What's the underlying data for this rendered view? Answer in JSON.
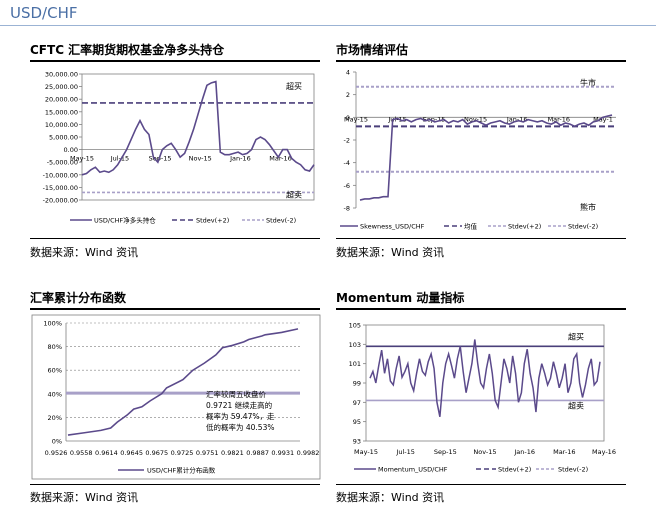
{
  "page": {
    "title": "USD/CHF"
  },
  "sections": {
    "s1": {
      "title": "CFTC 汇率期货期权基金净多头持仓",
      "source": "数据来源：Wind 资讯"
    },
    "s2": {
      "title": "市场情绪评估",
      "source": "数据来源：Wind 资讯"
    },
    "s3": {
      "title": "汇率累计分布函数",
      "source": "数据来源：Wind 资讯"
    },
    "s4": {
      "title": "Momentum 动量指标",
      "source": "数据来源：Wind 资讯"
    }
  },
  "colors": {
    "series": "#5b4a8b",
    "band_upper": "#4a3f7a",
    "band_lower": "#a8a0c8",
    "grid": "#c0c0c0",
    "title": "#4a6fa5"
  },
  "chart_data": [
    {
      "id": "cftc",
      "type": "line",
      "ylim": [
        -20000,
        30000
      ],
      "yticks": [
        -20000,
        -15000,
        -10000,
        -5000,
        0,
        5000,
        10000,
        15000,
        20000,
        25000,
        30000
      ],
      "ytick_labels": [
        "-20,000.00",
        "-15,000.00",
        "-10,000.00",
        "-5,000.00",
        "0.00",
        "5,000.00",
        "10,000.00",
        "15,000.00",
        "20,000.00",
        "25,000.00",
        "30,000.00"
      ],
      "xtick_labels": [
        "May-15",
        "Jul-15",
        "Sep-15",
        "Nov-15",
        "Jan-16",
        "Mar-16"
      ],
      "xtick_pos": [
        0,
        8.5,
        17.5,
        26.5,
        35.5,
        44.5
      ],
      "x_count": 53,
      "series": [
        {
          "name": "USD/CHF净多头持仓",
          "values": [
            -10000,
            -9500,
            -8000,
            -7000,
            -9000,
            -8500,
            -9000,
            -8000,
            -6000,
            -3000,
            0,
            4000,
            8000,
            11500,
            8000,
            6000,
            -3000,
            -5000,
            0,
            1500,
            2500,
            0,
            -3000,
            -1500,
            3000,
            8000,
            14000,
            20000,
            25500,
            26500,
            27000,
            -1000,
            -2000,
            -2000,
            -1500,
            -1000,
            -2000,
            -1500,
            0,
            4000,
            5000,
            4000,
            2000,
            -500,
            -3000,
            0,
            0,
            -3500,
            -5000,
            -6000,
            -8000,
            -8500,
            -6000
          ]
        },
        {
          "name": "Stdev(+2)",
          "constant": 18500
        },
        {
          "name": "Stdev(-2)",
          "constant": -17000
        }
      ],
      "annotations": [
        {
          "text": "超买"
        },
        {
          "text": "超卖"
        }
      ],
      "legend": [
        "USD/CHF净多头持仓",
        "Stdev(+2)",
        "Stdev(-2)"
      ]
    },
    {
      "id": "sentiment",
      "type": "line",
      "ylim": [
        -8,
        4
      ],
      "yticks": [
        -8,
        -6,
        -4,
        -2,
        0,
        2,
        4
      ],
      "ytick_labels": [
        "-8",
        "-6",
        "-4",
        "-2",
        "0",
        "2",
        "4"
      ],
      "xtick_labels": [
        "May-15",
        "Jul-15",
        "Sep-15",
        "Nov-15",
        "Jan-16",
        "Mar-16",
        "May-1"
      ],
      "x_count": 55,
      "series": [
        {
          "name": "Skewness_USD/CHF",
          "values": [
            -7.3,
            -7.2,
            -7.2,
            -7.1,
            -7.1,
            -7.0,
            -7.0,
            -0.2,
            -0.1,
            -0.3,
            -0.2,
            -0.4,
            -0.2,
            -0.1,
            -0.3,
            -0.2,
            -0.4,
            -0.3,
            -0.2,
            -0.5,
            -0.3,
            -0.4,
            -0.2,
            -0.6,
            -0.4,
            -0.3,
            -0.5,
            -0.7,
            -0.5,
            -0.4,
            -0.3,
            -0.5,
            -0.6,
            -0.4,
            -0.3,
            -0.4,
            -0.2,
            -0.3,
            -0.4,
            -0.3,
            -0.5,
            -0.6,
            -0.4,
            -0.7,
            -0.5,
            -0.6,
            -0.8,
            -0.6,
            -0.5,
            -0.7,
            -0.4,
            -0.3,
            0.0,
            0.1,
            0.2
          ]
        },
        {
          "name": "均值",
          "constant": -0.8
        },
        {
          "name": "Stdev(+2)",
          "constant": 2.7
        },
        {
          "name": "Stdev(-2)",
          "constant": -4.8
        }
      ],
      "annotations": [
        {
          "text": "牛市"
        },
        {
          "text": "熊市"
        }
      ],
      "legend": [
        "Skewness_USD/CHF",
        "均值",
        "Stdev(+2)",
        "Stdev(-2)"
      ]
    },
    {
      "id": "cdf",
      "type": "line",
      "ylim": [
        0,
        100
      ],
      "yticks": [
        0,
        20,
        40,
        60,
        80,
        100
      ],
      "ytick_labels": [
        "0%",
        "20%",
        "40%",
        "60%",
        "80%",
        "100%"
      ],
      "x": [
        0.9526,
        0.9558,
        0.959,
        0.961,
        0.9625,
        0.9645,
        0.966,
        0.9675,
        0.97,
        0.9721,
        0.973,
        0.9751,
        0.977,
        0.979,
        0.981,
        0.9821,
        0.984,
        0.986,
        0.9887,
        0.991,
        0.9931,
        0.996,
        0.9982
      ],
      "x_idx": [
        0,
        1,
        2,
        2.6,
        3,
        3.6,
        4,
        4.5,
        5,
        5.7,
        6,
        7,
        7.6,
        8.3,
        9,
        9.4,
        10,
        10.7,
        11,
        11.8,
        12,
        13,
        14
      ],
      "xtick_labels": [
        "0.9526",
        "0.9558",
        "0.9614",
        "0.9645",
        "0.9675",
        "0.9725",
        "0.9751",
        "0.9821",
        "0.9887",
        "0.9931",
        "0.9982"
      ],
      "series": [
        {
          "name": "USD/CHF累计分布函数",
          "values": [
            5,
            7,
            9,
            11,
            16,
            22,
            27,
            29,
            34,
            40,
            45,
            52,
            60,
            66,
            73,
            79,
            81,
            84,
            86,
            89,
            90,
            92,
            95
          ]
        },
        {
          "name": "level",
          "constant": 40.53
        }
      ],
      "annotation": "汇率较周五收盘价0.9721 继续走高的概率为 59.47%，走低的概率为 40.53%",
      "annotation_lines": [
        "汇率较周五收盘价",
        "0.9721 继续走高的",
        "概率为 59.47%，走",
        "低的概率为 40.53%"
      ],
      "legend": [
        "USD/CHF累计分布函数"
      ]
    },
    {
      "id": "momentum",
      "type": "line",
      "ylim": [
        93,
        105
      ],
      "yticks": [
        93,
        95,
        97,
        99,
        101,
        103,
        105
      ],
      "ytick_labels": [
        "93",
        "95",
        "97",
        "99",
        "101",
        "103",
        "105"
      ],
      "xtick_labels": [
        "May-15",
        "Jul-15",
        "Sep-15",
        "Nov-15",
        "Jan-16",
        "Mar-16",
        "May-16"
      ],
      "x_count": 80,
      "series": [
        {
          "name": "Momentum_USD/CHF",
          "values": [
            99.5,
            100.2,
            99.0,
            100.8,
            102.4,
            100.0,
            101.5,
            99.2,
            98.8,
            100.5,
            101.8,
            99.6,
            100.2,
            101.0,
            99.0,
            98.2,
            100.0,
            101.5,
            100.2,
            99.8,
            101.2,
            102.0,
            100.5,
            97.0,
            95.5,
            99.0,
            101.0,
            102.0,
            100.8,
            99.5,
            101.5,
            102.8,
            100.2,
            98.0,
            99.5,
            101.0,
            103.5,
            101.0,
            99.0,
            98.5,
            100.5,
            102.0,
            100.0,
            97.2,
            96.5,
            99.0,
            101.5,
            100.5,
            99.0,
            101.8,
            100.0,
            97.0,
            98.0,
            101.0,
            102.5,
            100.0,
            98.5,
            96.0,
            99.5,
            101.0,
            100.0,
            98.8,
            99.5,
            101.2,
            100.0,
            98.5,
            99.5,
            101.0,
            98.0,
            99.0,
            101.5,
            102.0,
            99.0,
            97.5,
            98.8,
            100.5,
            101.5,
            98.8,
            99.2,
            101.2
          ]
        },
        {
          "name": "Stdev(+2)",
          "constant": 102.8
        },
        {
          "name": "Stdev(-2)",
          "constant": 97.2
        }
      ],
      "annotations": [
        {
          "text": "超买"
        },
        {
          "text": "超卖"
        }
      ],
      "legend": [
        "Momentum_USD/CHF",
        "Stdev(+2)",
        "Stdev(-2)"
      ]
    }
  ]
}
